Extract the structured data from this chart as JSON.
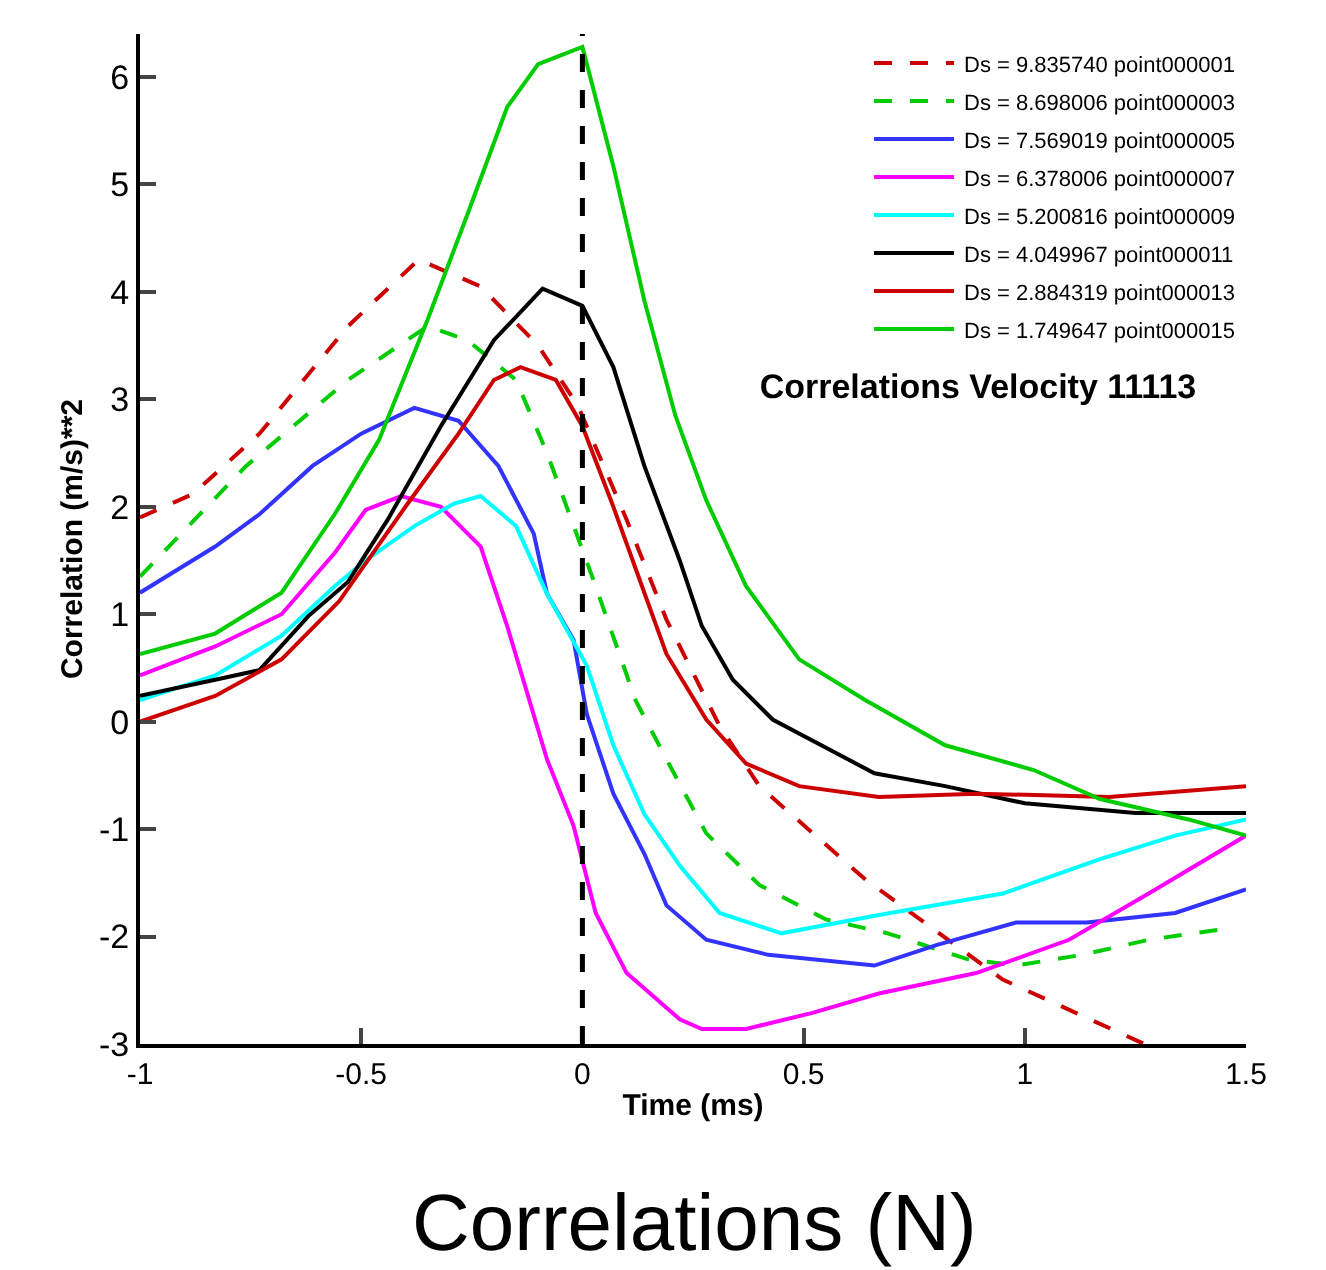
{
  "chart_data": {
    "type": "line",
    "title": "Correlations Velocity 11113",
    "xlabel": "Time (ms)",
    "ylabel": "Correlation (m/s)**2",
    "annotations": [
      "Correlations (N)"
    ],
    "xlim": [
      -1,
      1.5
    ],
    "xticks": [
      -1,
      -0.5,
      0,
      0.5,
      1,
      1.5
    ],
    "ylim": [
      -3,
      6.4
    ],
    "yticks": [
      -3,
      -2,
      -1,
      0,
      1,
      2,
      3,
      4,
      5,
      6
    ],
    "legend": "top right",
    "ref_lines": [
      {
        "axis": "x",
        "value": 0,
        "color": "#000000",
        "line_style": "dashed"
      }
    ],
    "series": [
      {
        "name": "Ds = 9.835740 point000001",
        "color": "#cc0000",
        "line_style": "dashed",
        "x": [
          -1,
          -0.88,
          -0.73,
          -0.53,
          -0.37,
          -0.23,
          -0.1,
          -0.01,
          0.1,
          0.19,
          0.31,
          0.4,
          0.64,
          0.95,
          1.27
        ],
        "values": [
          1.9,
          2.12,
          2.68,
          3.68,
          4.3,
          4.05,
          3.5,
          2.94,
          1.88,
          0.95,
          -0.04,
          -0.6,
          -1.47,
          -2.4,
          -3.0
        ]
      },
      {
        "name": "Ds = 8.698006 point000003",
        "color": "#00cc00",
        "line_style": "dashed",
        "x": [
          -1,
          -0.76,
          -0.53,
          -0.35,
          -0.26,
          -0.15,
          -0.08,
          0.03,
          0.12,
          0.19,
          0.28,
          0.4,
          0.55,
          0.69,
          0.87,
          0.98,
          1.13,
          1.28,
          1.45
        ],
        "values": [
          1.35,
          2.38,
          3.18,
          3.68,
          3.55,
          3.18,
          2.5,
          1.26,
          0.2,
          -0.35,
          -1.04,
          -1.52,
          -1.84,
          -1.97,
          -2.21,
          -2.27,
          -2.17,
          -2.03,
          -1.93
        ]
      },
      {
        "name": "Ds = 7.569019 point000005",
        "color": "#3333ff",
        "x": [
          -1,
          -0.83,
          -0.73,
          -0.61,
          -0.5,
          -0.38,
          -0.28,
          -0.19,
          -0.11,
          -0.08,
          -0.02,
          0.01,
          0.07,
          0.14,
          0.19,
          0.28,
          0.42,
          0.66,
          0.8,
          0.98,
          1.14,
          1.34,
          1.5
        ],
        "values": [
          1.2,
          1.63,
          1.93,
          2.38,
          2.68,
          2.92,
          2.8,
          2.38,
          1.75,
          1.19,
          0.76,
          0.07,
          -0.67,
          -1.23,
          -1.71,
          -2.03,
          -2.17,
          -2.27,
          -2.08,
          -1.87,
          -1.87,
          -1.78,
          -1.56
        ]
      },
      {
        "name": "Ds = 6.378006 point000007",
        "color": "#ff00ff",
        "x": [
          -1,
          -0.83,
          -0.68,
          -0.56,
          -0.49,
          -0.41,
          -0.32,
          -0.23,
          -0.17,
          -0.08,
          -0.02,
          0.03,
          0.1,
          0.22,
          0.27,
          0.37,
          0.52,
          0.67,
          0.89,
          1.1,
          1.28,
          1.5
        ],
        "values": [
          0.43,
          0.7,
          1.0,
          1.57,
          1.97,
          2.1,
          2.0,
          1.63,
          0.89,
          -0.35,
          -0.97,
          -1.78,
          -2.34,
          -2.77,
          -2.86,
          -2.86,
          -2.71,
          -2.53,
          -2.34,
          -2.03,
          -1.6,
          -1.06
        ]
      },
      {
        "name": "Ds = 5.200816 point000009",
        "color": "#00ffff",
        "x": [
          -1,
          -0.83,
          -0.68,
          -0.56,
          -0.49,
          -0.38,
          -0.29,
          -0.23,
          -0.15,
          -0.08,
          0.01,
          0.07,
          0.14,
          0.22,
          0.31,
          0.45,
          0.67,
          0.95,
          1.17,
          1.34,
          1.5
        ],
        "values": [
          0.2,
          0.43,
          0.8,
          1.26,
          1.5,
          1.82,
          2.03,
          2.1,
          1.82,
          1.19,
          0.52,
          -0.22,
          -0.86,
          -1.34,
          -1.78,
          -1.97,
          -1.8,
          -1.6,
          -1.28,
          -1.06,
          -0.91
        ]
      },
      {
        "name": "Ds = 4.049967 point000011",
        "color": "#000000",
        "x": [
          -1,
          -0.83,
          -0.73,
          -0.62,
          -0.53,
          -0.44,
          -0.32,
          -0.2,
          -0.09,
          0.0,
          0.07,
          0.14,
          0.22,
          0.27,
          0.34,
          0.43,
          0.54,
          0.66,
          0.82,
          1.0,
          1.25,
          1.5
        ],
        "values": [
          0.24,
          0.39,
          0.48,
          0.98,
          1.3,
          1.88,
          2.75,
          3.55,
          4.03,
          3.87,
          3.3,
          2.38,
          1.5,
          0.89,
          0.39,
          0.02,
          -0.22,
          -0.48,
          -0.6,
          -0.76,
          -0.85,
          -0.85
        ]
      },
      {
        "name": "Ds = 2.884319 point000013",
        "color": "#cc0000",
        "x": [
          -1,
          -0.83,
          -0.68,
          -0.55,
          -0.4,
          -0.28,
          -0.2,
          -0.14,
          -0.06,
          0.0,
          0.07,
          0.14,
          0.19,
          0.28,
          0.37,
          0.49,
          0.67,
          0.89,
          1.19,
          1.5
        ],
        "values": [
          0.0,
          0.24,
          0.58,
          1.12,
          2.0,
          2.68,
          3.18,
          3.3,
          3.18,
          2.75,
          2.0,
          1.2,
          0.63,
          0.02,
          -0.39,
          -0.6,
          -0.7,
          -0.67,
          -0.7,
          -0.6
        ]
      },
      {
        "name": "Ds = 1.749647 point000015",
        "color": "#00cc00",
        "x": [
          -1,
          -0.83,
          -0.68,
          -0.56,
          -0.46,
          -0.35,
          -0.26,
          -0.17,
          -0.1,
          0.0,
          0.07,
          0.14,
          0.21,
          0.28,
          0.37,
          0.49,
          0.64,
          0.82,
          1.02,
          1.17,
          1.37,
          1.5
        ],
        "values": [
          0.63,
          0.82,
          1.2,
          1.93,
          2.62,
          3.74,
          4.72,
          5.72,
          6.12,
          6.28,
          5.17,
          3.92,
          2.85,
          2.06,
          1.26,
          0.58,
          0.2,
          -0.22,
          -0.45,
          -0.72,
          -0.91,
          -1.06
        ]
      }
    ]
  }
}
